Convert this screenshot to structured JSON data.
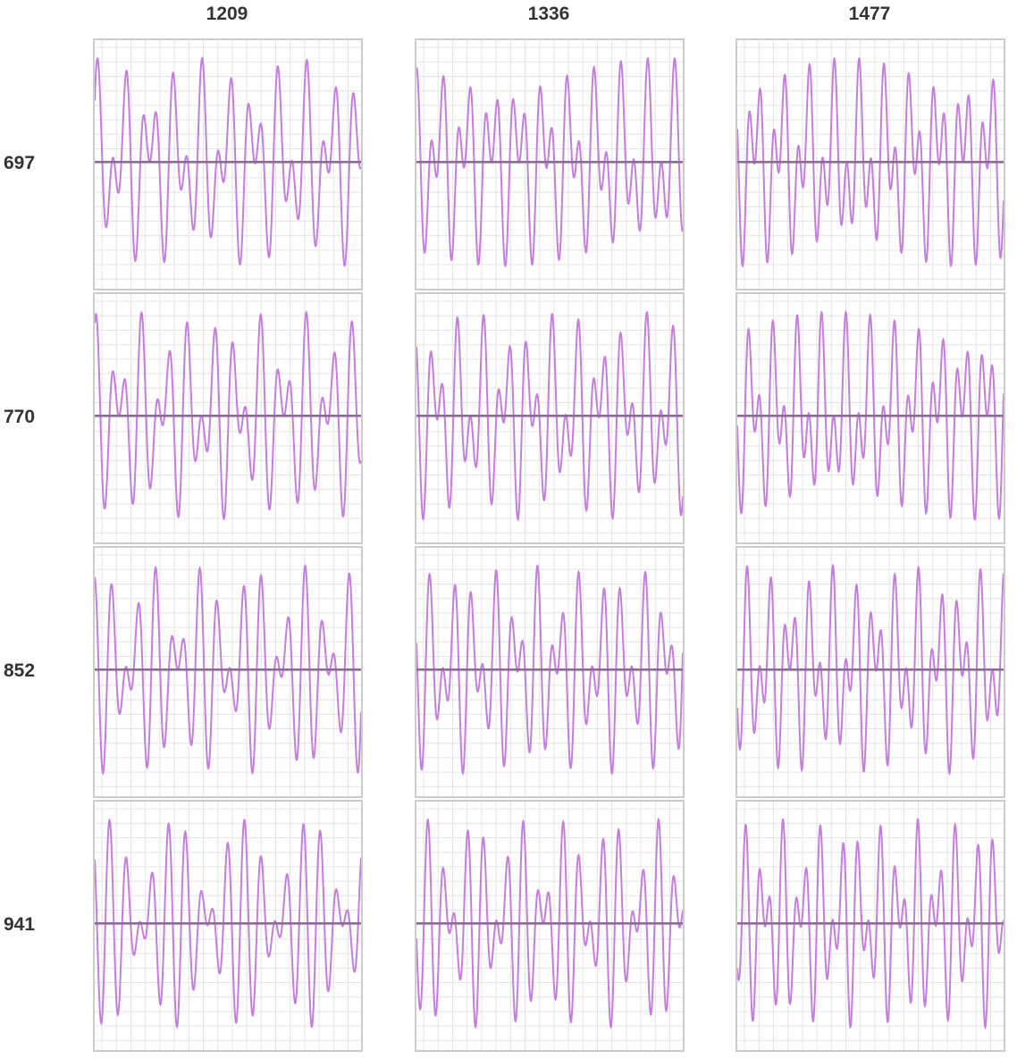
{
  "chart_data": {
    "type": "line",
    "title": "",
    "columns": [
      {
        "label": "1209",
        "freq": 1209
      },
      {
        "label": "1336",
        "freq": 1336
      },
      {
        "label": "1477",
        "freq": 1477
      }
    ],
    "rows": [
      {
        "label": "697",
        "freq": 697
      },
      {
        "label": "770",
        "freq": 770
      },
      {
        "label": "852",
        "freq": 852
      },
      {
        "label": "941",
        "freq": 941
      }
    ],
    "y_range": [
      -2.2,
      2.2
    ],
    "grid": true,
    "colors": {
      "waveform": "#c47fdc",
      "baseline": "#8b6a95",
      "grid": "#e4e4e4",
      "border": "#cccccc",
      "header_text": "#333333"
    }
  }
}
